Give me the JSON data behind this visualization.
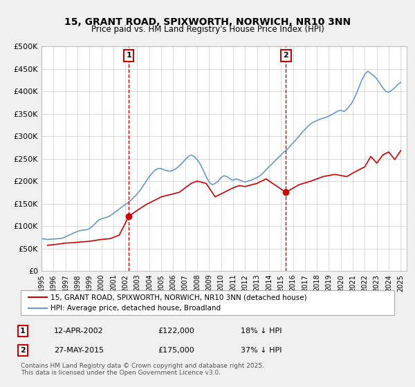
{
  "title": "15, GRANT ROAD, SPIXWORTH, NORWICH, NR10 3NN",
  "subtitle": "Price paid vs. HM Land Registry's House Price Index (HPI)",
  "xlabel": "",
  "ylabel": "",
  "ylim": [
    0,
    500000
  ],
  "yticks": [
    0,
    50000,
    100000,
    150000,
    200000,
    250000,
    300000,
    350000,
    400000,
    450000,
    500000
  ],
  "ytick_labels": [
    "£0",
    "£50K",
    "£100K",
    "£150K",
    "£200K",
    "£250K",
    "£300K",
    "£350K",
    "£400K",
    "£450K",
    "£500K"
  ],
  "background_color": "#f0f0f0",
  "plot_bg_color": "#ffffff",
  "grid_color": "#cccccc",
  "red_line_color": "#cc0000",
  "blue_line_color": "#6699cc",
  "vline_color": "#cc0000",
  "marker1_date_idx": 7.33,
  "marker1_value": 122000,
  "marker2_date_idx": 20.42,
  "marker2_value": 175000,
  "marker1_year": 2002.29,
  "marker2_year": 2015.41,
  "legend_label_red": "15, GRANT ROAD, SPIXWORTH, NORWICH, NR10 3NN (detached house)",
  "legend_label_blue": "HPI: Average price, detached house, Broadland",
  "table_row1": [
    "1",
    "12-APR-2002",
    "£122,000",
    "18% ↓ HPI"
  ],
  "table_row2": [
    "2",
    "27-MAY-2015",
    "£175,000",
    "37% ↓ HPI"
  ],
  "footnote": "Contains HM Land Registry data © Crown copyright and database right 2025.\nThis data is licensed under the Open Government Licence v3.0.",
  "hpi_data": {
    "years": [
      1995.0,
      1995.25,
      1995.5,
      1995.75,
      1996.0,
      1996.25,
      1996.5,
      1996.75,
      1997.0,
      1997.25,
      1997.5,
      1997.75,
      1998.0,
      1998.25,
      1998.5,
      1998.75,
      1999.0,
      1999.25,
      1999.5,
      1999.75,
      2000.0,
      2000.25,
      2000.5,
      2000.75,
      2001.0,
      2001.25,
      2001.5,
      2001.75,
      2002.0,
      2002.25,
      2002.5,
      2002.75,
      2003.0,
      2003.25,
      2003.5,
      2003.75,
      2004.0,
      2004.25,
      2004.5,
      2004.75,
      2005.0,
      2005.25,
      2005.5,
      2005.75,
      2006.0,
      2006.25,
      2006.5,
      2006.75,
      2007.0,
      2007.25,
      2007.5,
      2007.75,
      2008.0,
      2008.25,
      2008.5,
      2008.75,
      2009.0,
      2009.25,
      2009.5,
      2009.75,
      2010.0,
      2010.25,
      2010.5,
      2010.75,
      2011.0,
      2011.25,
      2011.5,
      2011.75,
      2012.0,
      2012.25,
      2012.5,
      2012.75,
      2013.0,
      2013.25,
      2013.5,
      2013.75,
      2014.0,
      2014.25,
      2014.5,
      2014.75,
      2015.0,
      2015.25,
      2015.5,
      2015.75,
      2016.0,
      2016.25,
      2016.5,
      2016.75,
      2017.0,
      2017.25,
      2017.5,
      2017.75,
      2018.0,
      2018.25,
      2018.5,
      2018.75,
      2019.0,
      2019.25,
      2019.5,
      2019.75,
      2020.0,
      2020.25,
      2020.5,
      2020.75,
      2021.0,
      2021.25,
      2021.5,
      2021.75,
      2022.0,
      2022.25,
      2022.5,
      2022.75,
      2023.0,
      2023.25,
      2023.5,
      2023.75,
      2024.0,
      2024.25,
      2024.5,
      2024.75,
      2025.0
    ],
    "values": [
      72000,
      71000,
      70000,
      70500,
      71000,
      71500,
      72000,
      73000,
      76000,
      79000,
      82000,
      85000,
      88000,
      90000,
      91000,
      91500,
      94000,
      99000,
      106000,
      113000,
      116000,
      118000,
      120000,
      123000,
      128000,
      133000,
      138000,
      143000,
      148000,
      152000,
      158000,
      165000,
      172000,
      180000,
      190000,
      200000,
      210000,
      218000,
      225000,
      228000,
      228000,
      225000,
      223000,
      222000,
      224000,
      228000,
      234000,
      240000,
      248000,
      255000,
      258000,
      255000,
      248000,
      238000,
      225000,
      210000,
      198000,
      192000,
      195000,
      200000,
      208000,
      212000,
      210000,
      205000,
      202000,
      205000,
      203000,
      200000,
      198000,
      200000,
      202000,
      205000,
      208000,
      212000,
      218000,
      225000,
      232000,
      238000,
      245000,
      252000,
      258000,
      265000,
      270000,
      278000,
      285000,
      292000,
      300000,
      308000,
      315000,
      322000,
      328000,
      332000,
      335000,
      338000,
      340000,
      342000,
      345000,
      348000,
      352000,
      356000,
      358000,
      355000,
      360000,
      368000,
      378000,
      392000,
      408000,
      425000,
      438000,
      445000,
      440000,
      435000,
      428000,
      418000,
      408000,
      400000,
      398000,
      402000,
      408000,
      415000,
      420000
    ]
  },
  "price_data": {
    "years": [
      1995.5,
      1996.5,
      1997.0,
      1997.75,
      1998.5,
      1999.0,
      1999.5,
      2000.0,
      2000.75,
      2001.5,
      2002.29,
      2003.0,
      2003.75,
      2004.5,
      2005.0,
      2005.75,
      2006.5,
      2007.0,
      2007.5,
      2008.0,
      2008.75,
      2009.5,
      2010.25,
      2011.0,
      2011.5,
      2012.0,
      2013.0,
      2013.75,
      2015.41,
      2016.5,
      2017.5,
      2018.5,
      2019.5,
      2020.5,
      2021.0,
      2021.5,
      2022.0,
      2022.5,
      2023.0,
      2023.5,
      2024.0,
      2024.5,
      2025.0
    ],
    "values": [
      57000,
      60000,
      62000,
      63000,
      65000,
      66000,
      68000,
      70000,
      72000,
      80000,
      122000,
      135000,
      148000,
      158000,
      165000,
      170000,
      175000,
      185000,
      195000,
      200000,
      195000,
      165000,
      175000,
      185000,
      190000,
      188000,
      195000,
      205000,
      175000,
      192000,
      200000,
      210000,
      215000,
      210000,
      218000,
      225000,
      232000,
      255000,
      240000,
      258000,
      265000,
      248000,
      268000
    ]
  }
}
